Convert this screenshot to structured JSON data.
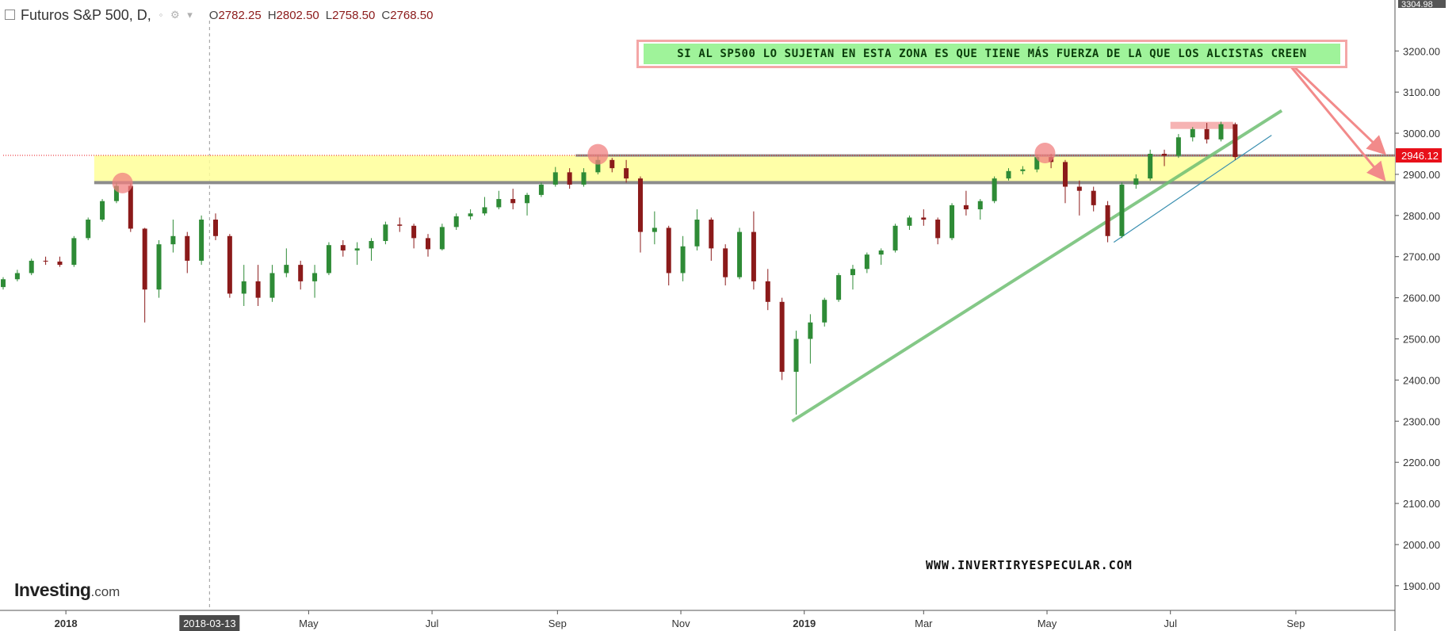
{
  "header": {
    "symbol": "Futuros S&P 500, D,",
    "open_label": "O",
    "open": "2782.25",
    "high_label": "H",
    "high": "2802.50",
    "low_label": "L",
    "low": "2758.50",
    "close_label": "C",
    "close": "2768.50"
  },
  "annotation": "SI AL SP500 LO SUJETAN EN ESTA ZONA ES QUE TIENE MÁS FUERZA DE LA QUE LOS ALCISTAS CREEN",
  "website": "WWW.INVERTIRYESPECULAR.COM",
  "logo": {
    "main": "Investing",
    "suffix": ".com"
  },
  "crosshair_date": "2018-03-13",
  "top_price_label": "3304.98",
  "colors": {
    "up": "#2e8b36",
    "down": "#8b1a1a",
    "zone": "#ffff99",
    "trendline": "#6fbf73",
    "banner_bg": "#9ff39a",
    "banner_border": "#f4a7a7",
    "price_tag": "#e8101a",
    "marker": "#f08080"
  },
  "chart_data": {
    "type": "candlestick",
    "x_ticks": [
      {
        "label": "2018",
        "date": "2018-01-01"
      },
      {
        "label": "May",
        "date": "2018-05-01"
      },
      {
        "label": "Jul",
        "date": "2018-07-01"
      },
      {
        "label": "Sep",
        "date": "2018-09-01"
      },
      {
        "label": "Nov",
        "date": "2018-11-01"
      },
      {
        "label": "2019",
        "date": "2019-01-01"
      },
      {
        "label": "Mar",
        "date": "2019-03-01"
      },
      {
        "label": "May",
        "date": "2019-05-01"
      },
      {
        "label": "Jul",
        "date": "2019-07-01"
      },
      {
        "label": "Sep",
        "date": "2019-09-01"
      }
    ],
    "y_ticks": [
      1900,
      2000,
      2100,
      2200,
      2300,
      2400,
      2500,
      2600,
      2700,
      2800,
      2900,
      3000,
      3100,
      3200
    ],
    "y_range": [
      1840,
      3320
    ],
    "x_range": [
      "2017-12-01",
      "2019-10-20"
    ],
    "price_line": 2946.12,
    "price_tag": "2946.12",
    "zone": {
      "from_date": "2018-01-15",
      "low": 2880,
      "high": 2946
    },
    "trendline": {
      "start": {
        "date": "2018-12-26",
        "value": 2300
      },
      "end": {
        "date": "2019-08-25",
        "value": 3055
      }
    },
    "trendline_thin": {
      "start": {
        "date": "2019-06-03",
        "value": 2735
      },
      "end": {
        "date": "2019-08-20",
        "value": 2995
      }
    },
    "markers": [
      {
        "date": "2018-01-29",
        "value": 2875
      },
      {
        "date": "2018-09-21",
        "value": 2945
      },
      {
        "date": "2019-04-30",
        "value": 2948
      }
    ],
    "top_box": {
      "from_date": "2019-07-01",
      "to_date": "2019-08-01",
      "value": 3020
    },
    "arrows": [
      {
        "from_date": "2019-08-24",
        "from_value": 3195,
        "to_date": "2019-10-14",
        "to_value": 2955
      },
      {
        "from_date": "2019-08-24",
        "from_value": 3195,
        "to_date": "2019-10-14",
        "to_value": 2892
      }
    ],
    "candles": [
      {
        "date": "2017-12-01",
        "o": 2626,
        "h": 2650,
        "l": 2620,
        "c": 2645
      },
      {
        "date": "2017-12-08",
        "o": 2645,
        "h": 2668,
        "l": 2640,
        "c": 2660
      },
      {
        "date": "2017-12-15",
        "o": 2660,
        "h": 2695,
        "l": 2655,
        "c": 2690
      },
      {
        "date": "2017-12-22",
        "o": 2690,
        "h": 2700,
        "l": 2680,
        "c": 2688
      },
      {
        "date": "2017-12-29",
        "o": 2688,
        "h": 2700,
        "l": 2675,
        "c": 2680
      },
      {
        "date": "2018-01-05",
        "o": 2680,
        "h": 2750,
        "l": 2675,
        "c": 2745
      },
      {
        "date": "2018-01-12",
        "o": 2745,
        "h": 2795,
        "l": 2740,
        "c": 2790
      },
      {
        "date": "2018-01-19",
        "o": 2790,
        "h": 2840,
        "l": 2785,
        "c": 2835
      },
      {
        "date": "2018-01-26",
        "o": 2835,
        "h": 2880,
        "l": 2830,
        "c": 2872
      },
      {
        "date": "2018-02-02",
        "o": 2872,
        "h": 2878,
        "l": 2760,
        "c": 2768
      },
      {
        "date": "2018-02-09",
        "o": 2768,
        "h": 2770,
        "l": 2540,
        "c": 2620
      },
      {
        "date": "2018-02-16",
        "o": 2620,
        "h": 2740,
        "l": 2600,
        "c": 2730
      },
      {
        "date": "2018-02-23",
        "o": 2730,
        "h": 2790,
        "l": 2710,
        "c": 2750
      },
      {
        "date": "2018-03-02",
        "o": 2750,
        "h": 2760,
        "l": 2660,
        "c": 2690
      },
      {
        "date": "2018-03-09",
        "o": 2690,
        "h": 2800,
        "l": 2680,
        "c": 2790
      },
      {
        "date": "2018-03-16",
        "o": 2790,
        "h": 2805,
        "l": 2740,
        "c": 2750
      },
      {
        "date": "2018-03-23",
        "o": 2750,
        "h": 2755,
        "l": 2600,
        "c": 2610
      },
      {
        "date": "2018-03-30",
        "o": 2610,
        "h": 2680,
        "l": 2580,
        "c": 2640
      },
      {
        "date": "2018-04-06",
        "o": 2640,
        "h": 2680,
        "l": 2580,
        "c": 2600
      },
      {
        "date": "2018-04-13",
        "o": 2600,
        "h": 2680,
        "l": 2590,
        "c": 2660
      },
      {
        "date": "2018-04-20",
        "o": 2660,
        "h": 2720,
        "l": 2650,
        "c": 2680
      },
      {
        "date": "2018-04-27",
        "o": 2680,
        "h": 2690,
        "l": 2620,
        "c": 2640
      },
      {
        "date": "2018-05-04",
        "o": 2640,
        "h": 2680,
        "l": 2600,
        "c": 2660
      },
      {
        "date": "2018-05-11",
        "o": 2660,
        "h": 2735,
        "l": 2655,
        "c": 2728
      },
      {
        "date": "2018-05-18",
        "o": 2728,
        "h": 2740,
        "l": 2700,
        "c": 2715
      },
      {
        "date": "2018-05-25",
        "o": 2715,
        "h": 2735,
        "l": 2680,
        "c": 2720
      },
      {
        "date": "2018-06-01",
        "o": 2720,
        "h": 2745,
        "l": 2690,
        "c": 2738
      },
      {
        "date": "2018-06-08",
        "o": 2738,
        "h": 2785,
        "l": 2730,
        "c": 2778
      },
      {
        "date": "2018-06-15",
        "o": 2778,
        "h": 2795,
        "l": 2760,
        "c": 2775
      },
      {
        "date": "2018-06-22",
        "o": 2775,
        "h": 2780,
        "l": 2720,
        "c": 2745
      },
      {
        "date": "2018-06-29",
        "o": 2745,
        "h": 2755,
        "l": 2700,
        "c": 2718
      },
      {
        "date": "2018-07-06",
        "o": 2718,
        "h": 2780,
        "l": 2715,
        "c": 2772
      },
      {
        "date": "2018-07-13",
        "o": 2772,
        "h": 2805,
        "l": 2765,
        "c": 2798
      },
      {
        "date": "2018-07-20",
        "o": 2798,
        "h": 2815,
        "l": 2790,
        "c": 2805
      },
      {
        "date": "2018-07-27",
        "o": 2805,
        "h": 2845,
        "l": 2800,
        "c": 2820
      },
      {
        "date": "2018-08-03",
        "o": 2820,
        "h": 2860,
        "l": 2815,
        "c": 2840
      },
      {
        "date": "2018-08-10",
        "o": 2840,
        "h": 2865,
        "l": 2815,
        "c": 2830
      },
      {
        "date": "2018-08-17",
        "o": 2830,
        "h": 2855,
        "l": 2800,
        "c": 2850
      },
      {
        "date": "2018-08-24",
        "o": 2850,
        "h": 2880,
        "l": 2845,
        "c": 2875
      },
      {
        "date": "2018-08-31",
        "o": 2875,
        "h": 2918,
        "l": 2870,
        "c": 2905
      },
      {
        "date": "2018-09-07",
        "o": 2905,
        "h": 2915,
        "l": 2865,
        "c": 2875
      },
      {
        "date": "2018-09-14",
        "o": 2875,
        "h": 2915,
        "l": 2870,
        "c": 2905
      },
      {
        "date": "2018-09-21",
        "o": 2905,
        "h": 2945,
        "l": 2900,
        "c": 2935
      },
      {
        "date": "2018-09-28",
        "o": 2935,
        "h": 2940,
        "l": 2905,
        "c": 2915
      },
      {
        "date": "2018-10-05",
        "o": 2915,
        "h": 2935,
        "l": 2880,
        "c": 2890
      },
      {
        "date": "2018-10-12",
        "o": 2890,
        "h": 2895,
        "l": 2710,
        "c": 2760
      },
      {
        "date": "2018-10-19",
        "o": 2760,
        "h": 2810,
        "l": 2730,
        "c": 2770
      },
      {
        "date": "2018-10-26",
        "o": 2770,
        "h": 2775,
        "l": 2630,
        "c": 2660
      },
      {
        "date": "2018-11-02",
        "o": 2660,
        "h": 2750,
        "l": 2640,
        "c": 2725
      },
      {
        "date": "2018-11-09",
        "o": 2725,
        "h": 2815,
        "l": 2715,
        "c": 2790
      },
      {
        "date": "2018-11-16",
        "o": 2790,
        "h": 2795,
        "l": 2690,
        "c": 2720
      },
      {
        "date": "2018-11-23",
        "o": 2720,
        "h": 2730,
        "l": 2630,
        "c": 2650
      },
      {
        "date": "2018-11-30",
        "o": 2650,
        "h": 2770,
        "l": 2645,
        "c": 2760
      },
      {
        "date": "2018-12-07",
        "o": 2760,
        "h": 2810,
        "l": 2620,
        "c": 2640
      },
      {
        "date": "2018-12-14",
        "o": 2640,
        "h": 2670,
        "l": 2570,
        "c": 2590
      },
      {
        "date": "2018-12-21",
        "o": 2590,
        "h": 2600,
        "l": 2400,
        "c": 2420
      },
      {
        "date": "2018-12-28",
        "o": 2420,
        "h": 2520,
        "l": 2316,
        "c": 2500
      },
      {
        "date": "2019-01-04",
        "o": 2500,
        "h": 2560,
        "l": 2440,
        "c": 2540
      },
      {
        "date": "2019-01-11",
        "o": 2540,
        "h": 2600,
        "l": 2530,
        "c": 2595
      },
      {
        "date": "2019-01-18",
        "o": 2595,
        "h": 2660,
        "l": 2590,
        "c": 2655
      },
      {
        "date": "2019-01-25",
        "o": 2655,
        "h": 2680,
        "l": 2620,
        "c": 2670
      },
      {
        "date": "2019-02-01",
        "o": 2670,
        "h": 2710,
        "l": 2660,
        "c": 2705
      },
      {
        "date": "2019-02-08",
        "o": 2705,
        "h": 2720,
        "l": 2680,
        "c": 2715
      },
      {
        "date": "2019-02-15",
        "o": 2715,
        "h": 2780,
        "l": 2710,
        "c": 2775
      },
      {
        "date": "2019-02-22",
        "o": 2775,
        "h": 2800,
        "l": 2765,
        "c": 2795
      },
      {
        "date": "2019-03-01",
        "o": 2795,
        "h": 2815,
        "l": 2775,
        "c": 2790
      },
      {
        "date": "2019-03-08",
        "o": 2790,
        "h": 2795,
        "l": 2730,
        "c": 2745
      },
      {
        "date": "2019-03-15",
        "o": 2745,
        "h": 2830,
        "l": 2740,
        "c": 2825
      },
      {
        "date": "2019-03-22",
        "o": 2825,
        "h": 2860,
        "l": 2800,
        "c": 2815
      },
      {
        "date": "2019-03-29",
        "o": 2815,
        "h": 2840,
        "l": 2790,
        "c": 2835
      },
      {
        "date": "2019-04-05",
        "o": 2835,
        "h": 2895,
        "l": 2830,
        "c": 2890
      },
      {
        "date": "2019-04-12",
        "o": 2890,
        "h": 2915,
        "l": 2885,
        "c": 2908
      },
      {
        "date": "2019-04-19",
        "o": 2908,
        "h": 2920,
        "l": 2900,
        "c": 2912
      },
      {
        "date": "2019-04-26",
        "o": 2912,
        "h": 2948,
        "l": 2905,
        "c": 2942
      },
      {
        "date": "2019-05-03",
        "o": 2942,
        "h": 2950,
        "l": 2915,
        "c": 2930
      },
      {
        "date": "2019-05-10",
        "o": 2930,
        "h": 2935,
        "l": 2830,
        "c": 2870
      },
      {
        "date": "2019-05-17",
        "o": 2870,
        "h": 2885,
        "l": 2800,
        "c": 2860
      },
      {
        "date": "2019-05-24",
        "o": 2860,
        "h": 2870,
        "l": 2810,
        "c": 2825
      },
      {
        "date": "2019-05-31",
        "o": 2825,
        "h": 2835,
        "l": 2735,
        "c": 2750
      },
      {
        "date": "2019-06-07",
        "o": 2750,
        "h": 2880,
        "l": 2745,
        "c": 2875
      },
      {
        "date": "2019-06-14",
        "o": 2875,
        "h": 2900,
        "l": 2865,
        "c": 2890
      },
      {
        "date": "2019-06-21",
        "o": 2890,
        "h": 2960,
        "l": 2885,
        "c": 2950
      },
      {
        "date": "2019-06-28",
        "o": 2950,
        "h": 2960,
        "l": 2920,
        "c": 2945
      },
      {
        "date": "2019-07-05",
        "o": 2945,
        "h": 2998,
        "l": 2940,
        "c": 2990
      },
      {
        "date": "2019-07-12",
        "o": 2990,
        "h": 3015,
        "l": 2980,
        "c": 3010
      },
      {
        "date": "2019-07-19",
        "o": 3010,
        "h": 3025,
        "l": 2975,
        "c": 2985
      },
      {
        "date": "2019-07-26",
        "o": 2985,
        "h": 3028,
        "l": 2980,
        "c": 3022
      },
      {
        "date": "2019-08-02",
        "o": 3022,
        "h": 3026,
        "l": 2935,
        "c": 2942
      }
    ]
  }
}
